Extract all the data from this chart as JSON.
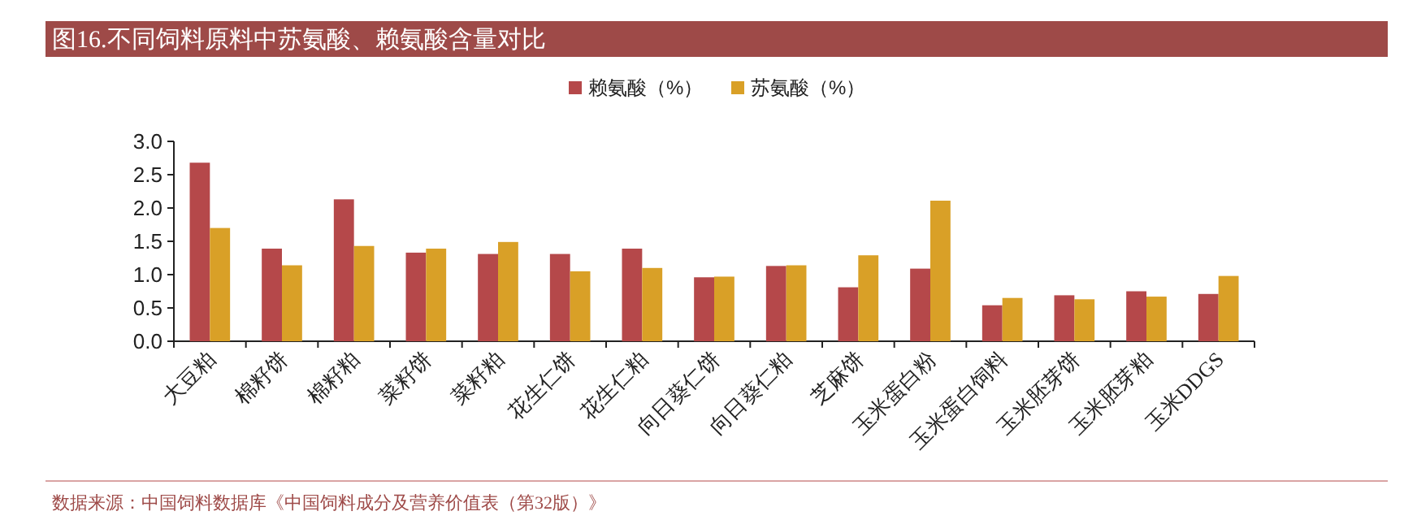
{
  "chart_data": {
    "type": "bar",
    "title": "图16.不同饲料原料中苏氨酸、赖氨酸含量对比",
    "categories": [
      "大豆粕",
      "棉籽饼",
      "棉籽粕",
      "菜籽饼",
      "菜籽粕",
      "花生仁饼",
      "花生仁粕",
      "向日葵仁饼",
      "向日葵仁粕",
      "芝麻饼",
      "玉米蛋白粉",
      "玉米蛋白饲料",
      "玉米胚芽饼",
      "玉米胚芽粕",
      "玉米DDGS"
    ],
    "series": [
      {
        "name": "赖氨酸（%）",
        "color": "#b5484a",
        "values": [
          2.68,
          1.39,
          2.13,
          1.33,
          1.31,
          1.31,
          1.39,
          0.96,
          1.13,
          0.81,
          1.09,
          0.54,
          0.69,
          0.75,
          0.71
        ]
      },
      {
        "name": "苏氨酸（%）",
        "color": "#d9a027",
        "values": [
          1.7,
          1.14,
          1.43,
          1.39,
          1.49,
          1.05,
          1.1,
          0.97,
          1.14,
          1.29,
          2.11,
          0.65,
          0.63,
          0.67,
          0.98
        ]
      }
    ],
    "ylim": [
      0,
      3
    ],
    "yticks": [
      {
        "value": 0,
        "label": "0.0"
      },
      {
        "value": 0.5,
        "label": "0.5"
      },
      {
        "value": 1,
        "label": "1.0"
      },
      {
        "value": 1.5,
        "label": "1.5"
      },
      {
        "value": 2,
        "label": "2.0"
      },
      {
        "value": 2.5,
        "label": "2.5"
      },
      {
        "value": 3,
        "label": "3.0"
      }
    ],
    "legend": "top",
    "annotations": [
      "数据来源：中国饲料数据库《中国饲料成分及营养价值表（第32版）》"
    ]
  }
}
